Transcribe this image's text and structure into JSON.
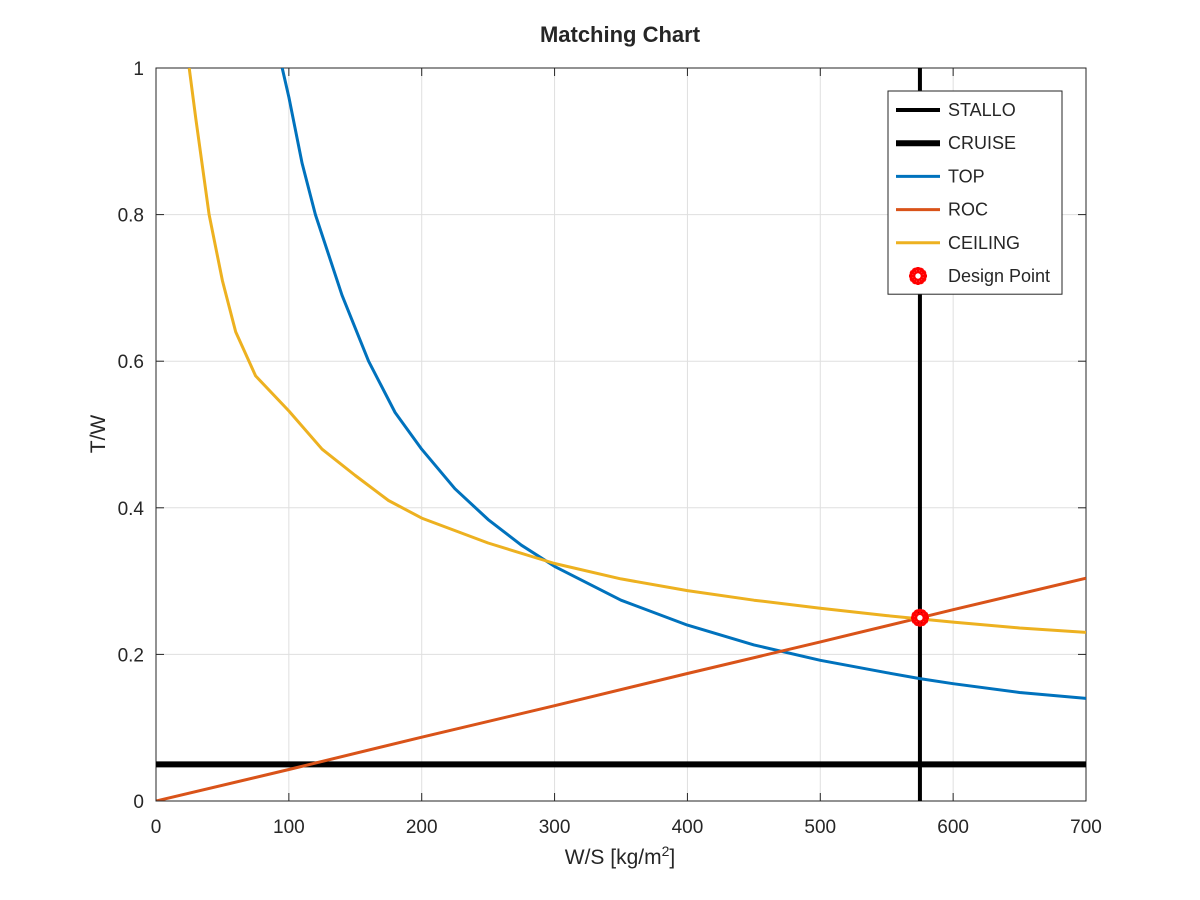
{
  "chart_data": {
    "type": "line",
    "title": "Matching Chart",
    "xlabel": "W/S [kg/m",
    "xlabel_sup": "2",
    "xlabel_end": "]",
    "ylabel": "T/W",
    "xlim": [
      0,
      700
    ],
    "ylim": [
      0,
      1
    ],
    "xticks": [
      0,
      100,
      200,
      300,
      400,
      500,
      600,
      700
    ],
    "yticks": [
      0,
      0.2,
      0.4,
      0.6,
      0.8,
      1
    ],
    "xtick_labels": [
      "0",
      "100",
      "200",
      "300",
      "400",
      "500",
      "600",
      "700"
    ],
    "ytick_labels": [
      "0",
      "0.2",
      "0.4",
      "0.6",
      "0.8",
      "1"
    ],
    "grid": true,
    "legend_position": "top-right",
    "series": [
      {
        "name": "STALLO",
        "kind": "vline",
        "x": 575,
        "color": "#000000",
        "width": "medium"
      },
      {
        "name": "CRUISE",
        "kind": "hline",
        "y": 0.05,
        "color": "#000000",
        "width": "thick"
      },
      {
        "name": "TOP",
        "kind": "curve",
        "color": "#0072BD",
        "x": [
          95,
          100,
          110,
          120,
          140,
          160,
          180,
          200,
          225,
          250,
          275,
          300,
          350,
          400,
          450,
          500,
          550,
          575,
          600,
          650,
          700
        ],
        "y": [
          1.0,
          0.96,
          0.87,
          0.8,
          0.69,
          0.6,
          0.53,
          0.48,
          0.426,
          0.384,
          0.349,
          0.32,
          0.274,
          0.24,
          0.213,
          0.192,
          0.175,
          0.167,
          0.16,
          0.148,
          0.14
        ]
      },
      {
        "name": "ROC",
        "kind": "curve",
        "color": "#D95319",
        "x": [
          0,
          100,
          200,
          300,
          400,
          500,
          575,
          600,
          700
        ],
        "y": [
          0.0,
          0.043,
          0.087,
          0.13,
          0.174,
          0.217,
          0.25,
          0.261,
          0.304
        ]
      },
      {
        "name": "CEILING",
        "kind": "curve",
        "color": "#EDB120",
        "x": [
          25,
          30,
          40,
          50,
          60,
          75,
          100,
          125,
          150,
          175,
          200,
          250,
          300,
          350,
          400,
          450,
          500,
          550,
          600,
          650,
          700
        ],
        "y": [
          1.0,
          0.93,
          0.8,
          0.71,
          0.64,
          0.58,
          0.532,
          0.48,
          0.444,
          0.41,
          0.386,
          0.352,
          0.324,
          0.303,
          0.287,
          0.274,
          0.263,
          0.253,
          0.244,
          0.236,
          0.23
        ]
      },
      {
        "name": "Design Point",
        "kind": "marker",
        "x": 575,
        "y": 0.25,
        "color": "#FF0000"
      }
    ]
  }
}
